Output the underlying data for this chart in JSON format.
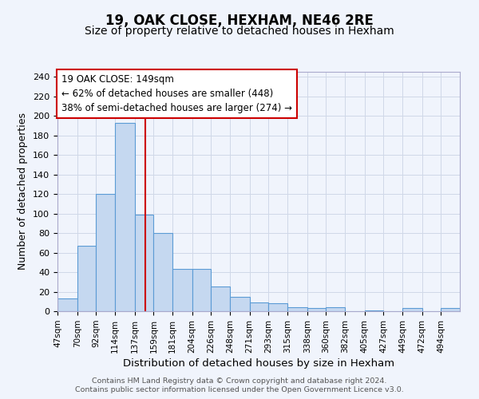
{
  "title": "19, OAK CLOSE, HEXHAM, NE46 2RE",
  "subtitle": "Size of property relative to detached houses in Hexham",
  "xlabel": "Distribution of detached houses by size in Hexham",
  "ylabel": "Number of detached properties",
  "bar_edges": [
    47,
    70,
    92,
    114,
    137,
    159,
    181,
    204,
    226,
    248,
    271,
    293,
    315,
    338,
    360,
    382,
    405,
    427,
    449,
    472,
    494
  ],
  "bar_heights": [
    13,
    67,
    120,
    193,
    99,
    80,
    43,
    43,
    25,
    15,
    9,
    8,
    4,
    3,
    4,
    0,
    1,
    0,
    3,
    0,
    3
  ],
  "bar_color": "#c5d8f0",
  "bar_edge_color": "#5b9bd5",
  "vline_x": 149,
  "vline_color": "#cc0000",
  "annotation_line1": "19 OAK CLOSE: 149sqm",
  "annotation_line2": "← 62% of detached houses are smaller (448)",
  "annotation_line3": "38% of semi-detached houses are larger (274) →",
  "annotation_box_edge_color": "#cc0000",
  "annotation_box_face_color": "white",
  "ylim": [
    0,
    245
  ],
  "yticks": [
    0,
    20,
    40,
    60,
    80,
    100,
    120,
    140,
    160,
    180,
    200,
    220,
    240
  ],
  "grid_color": "#d0d8e8",
  "footer_line1": "Contains HM Land Registry data © Crown copyright and database right 2024.",
  "footer_line2": "Contains public sector information licensed under the Open Government Licence v3.0.",
  "bg_color": "#f0f4fc",
  "title_fontsize": 12,
  "subtitle_fontsize": 10,
  "annot_fontsize": 8.5,
  "xlabel_fontsize": 9.5,
  "ylabel_fontsize": 9,
  "ytick_fontsize": 8,
  "xtick_fontsize": 7.5,
  "footer_fontsize": 6.8,
  "footer_color": "#555555"
}
